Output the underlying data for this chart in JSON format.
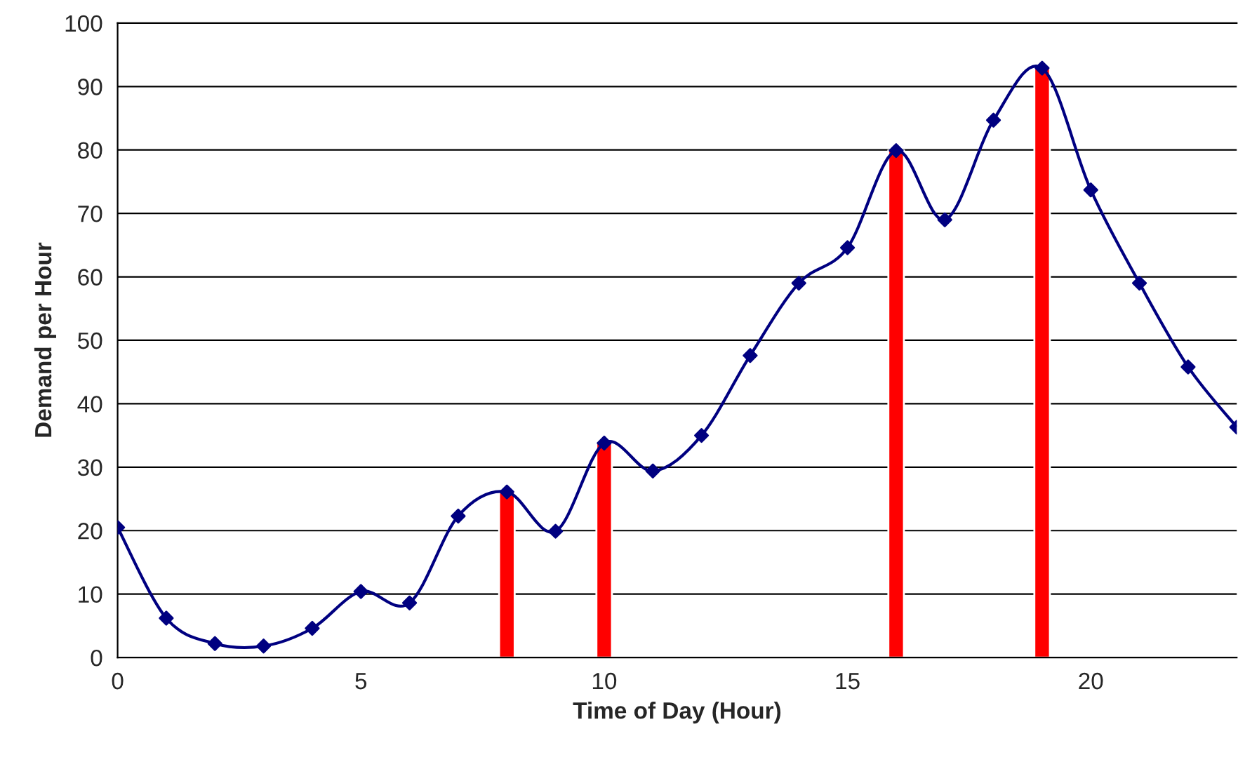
{
  "chart_data": {
    "type": "line",
    "xlabel": "Time of Day (Hour)",
    "ylabel": "Demand per Hour",
    "x": [
      0,
      1,
      2,
      3,
      4,
      5,
      6,
      7,
      8,
      9,
      10,
      11,
      12,
      13,
      14,
      15,
      16,
      17,
      18,
      19,
      20,
      21,
      22,
      23
    ],
    "series": [
      {
        "color": "#000080",
        "values": [
          20.5,
          6.2,
          2.2,
          1.8,
          4.6,
          10.4,
          8.6,
          22.3,
          26.1,
          19.9,
          33.8,
          29.4,
          35,
          47.6,
          59,
          64.6,
          79.9,
          69,
          84.7,
          92.9,
          73.7,
          59,
          45.8,
          36.3
        ]
      },
      {
        "type": "bar",
        "color": "#ff0000",
        "x": [
          8,
          10,
          16,
          19
        ],
        "values": [
          26.1,
          33.8,
          79.9,
          92.9
        ]
      }
    ],
    "xlim": [
      0,
      23
    ],
    "xticks": [
      0,
      5,
      10,
      15,
      20
    ],
    "ylim": [
      0,
      100
    ],
    "yticks": [
      0,
      10,
      20,
      30,
      40,
      50,
      60,
      70,
      80,
      90,
      100
    ],
    "grid": "y",
    "marker": "diamond",
    "line_style": "solid"
  }
}
